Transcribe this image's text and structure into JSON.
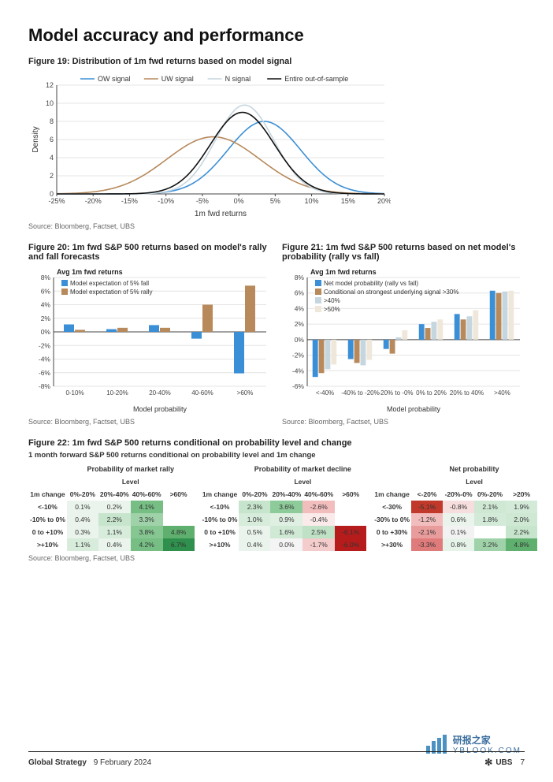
{
  "page_title": "Model accuracy and performance",
  "fig19": {
    "title": "Figure 19: Distribution of 1m fwd returns based on model signal",
    "source": "Source: Bloomberg, Factset, UBS",
    "xlabel": "1m fwd returns",
    "ylabel": "Density",
    "xlim": [
      -25,
      20
    ],
    "ylim": [
      0,
      12
    ],
    "xticks": [
      -25,
      -20,
      -15,
      -10,
      -5,
      0,
      5,
      10,
      15,
      20
    ],
    "yticks": [
      0,
      2,
      4,
      6,
      8,
      10,
      12
    ],
    "tick_fontsize": 9,
    "label_fontsize": 10,
    "grid_color": "#e4e4e4",
    "axis_color": "#444",
    "legend_fontsize": 9,
    "series": [
      {
        "label": "OW signal",
        "color": "#3b8fd6",
        "mu": 3.5,
        "sigma": 5.0,
        "amp": 8.0
      },
      {
        "label": "UW signal",
        "color": "#b7895b",
        "mu": -3.5,
        "sigma": 6.4,
        "amp": 6.3
      },
      {
        "label": "N signal",
        "color": "#c6d6df",
        "mu": 0.8,
        "sigma": 4.0,
        "amp": 9.8
      },
      {
        "label": "Entire out-of-sample",
        "color": "#111111",
        "mu": 0.5,
        "sigma": 4.4,
        "amp": 9.0
      }
    ]
  },
  "fig20": {
    "title": "Figure 20: 1m fwd S&P 500 returns based on model's rally and fall forecasts",
    "source": "Source: Bloomberg, Factset, UBS",
    "ylabel_top": "Avg 1m fwd returns",
    "xlabel": "Model probability",
    "ylim": [
      -8,
      8
    ],
    "yticks": [
      -8,
      -6,
      -4,
      -2,
      0,
      2,
      4,
      6,
      8
    ],
    "categories": [
      "0-10%",
      "10-20%",
      "20-40%",
      "40-60%",
      ">60%"
    ],
    "grid_color": "#e4e4e4",
    "axis_color": "#444",
    "series": [
      {
        "label": "Model expectation of 5% fall",
        "color": "#3b8fd6",
        "values": [
          1.1,
          0.4,
          1.0,
          -1.0,
          -6.1
        ]
      },
      {
        "label": "Model expectation of 5% rally",
        "color": "#b7895b",
        "values": [
          0.3,
          0.6,
          0.6,
          4.0,
          6.8
        ]
      }
    ]
  },
  "fig21": {
    "title": "Figure 21: 1m fwd S&P 500 returns based on net model's probability (rally vs fall)",
    "source": "Source: Bloomberg, Factset, UBS",
    "ylabel_top": "Avg 1m fwd returns",
    "xlabel": "Model probability",
    "ylim": [
      -6,
      8
    ],
    "yticks": [
      -6,
      -4,
      -2,
      0,
      2,
      4,
      6,
      8
    ],
    "categories": [
      "<-40%",
      "-40% to -20%",
      "-20% to -0%",
      "0% to 20%",
      "20% to 40%",
      ">40%"
    ],
    "grid_color": "#e4e4e4",
    "axis_color": "#444",
    "series": [
      {
        "label": "Net model probability (rally vs fall)",
        "color": "#3b8fd6",
        "values": [
          -4.8,
          -2.5,
          -1.2,
          2.0,
          3.3,
          6.3
        ]
      },
      {
        "label": "Conditional on strongest underlying signal >30%",
        "color": "#b7895b",
        "values": [
          -4.3,
          -3.0,
          -1.8,
          1.5,
          2.6,
          6.0
        ]
      },
      {
        "label": ">40%",
        "color": "#c6d6df",
        "values": [
          -3.8,
          -3.3,
          0.3,
          2.3,
          3.0,
          6.2
        ]
      },
      {
        "label": ">50%",
        "color": "#efe7da",
        "values": [
          -3.2,
          -2.6,
          1.2,
          2.6,
          3.8,
          6.3
        ]
      }
    ]
  },
  "fig22": {
    "title": "Figure 22: 1m fwd S&P 500 returns conditional on probability level and change",
    "subtitle": "1 month forward S&P 500 returns conditional on probability level and 1m change",
    "source": "Source: Bloomberg, Factset, UBS",
    "groupA": {
      "name": "Probability of market rally",
      "level_label": "Level",
      "change_label": "1m change",
      "cols": [
        "0%-20%",
        "20%-40%",
        "40%-60%",
        ">60%"
      ],
      "rows": [
        "<-10%",
        "-10% to 0%",
        "0 to +10%",
        ">+10%"
      ],
      "values": [
        [
          "0.1%",
          "0.2%",
          "4.1%",
          ""
        ],
        [
          "0.4%",
          "2.2%",
          "3.3%",
          ""
        ],
        [
          "0.3%",
          "1.1%",
          "3.8%",
          "4.8%"
        ],
        [
          "1.1%",
          "0.4%",
          "4.2%",
          "6.7%"
        ]
      ],
      "colors": [
        [
          "#eaf4ec",
          "#eaf4ec",
          "#76be84",
          ""
        ],
        [
          "#eaf4ec",
          "#c7e5cc",
          "#9fd2a9",
          ""
        ],
        [
          "#eaf4ec",
          "#d7ecdb",
          "#85c691",
          "#5fb06e"
        ],
        [
          "#d7ecdb",
          "#eaf4ec",
          "#76be84",
          "#2f8f4d"
        ]
      ]
    },
    "groupB": {
      "name": "Probability of market decline",
      "level_label": "Level",
      "change_label": "1m change",
      "cols": [
        "0%-20%",
        "20%-40%",
        "40%-60%",
        ">60%"
      ],
      "rows": [
        "<-10%",
        "-10% to 0%",
        "0 to +10%",
        ">+10%"
      ],
      "values": [
        [
          "2.3%",
          "3.6%",
          "-2.6%",
          ""
        ],
        [
          "1.0%",
          "0.9%",
          "-0.4%",
          ""
        ],
        [
          "0.5%",
          "1.6%",
          "2.5%",
          "-6.1%"
        ],
        [
          "0.4%",
          "0.0%",
          "-1.7%",
          "-6.0%"
        ]
      ],
      "colors": [
        [
          "#c7e5cc",
          "#8ecb9a",
          "#f2bdbd",
          ""
        ],
        [
          "#d7ecdb",
          "#dff0e3",
          "#faeaea",
          ""
        ],
        [
          "#eaf4ec",
          "#d0e9d5",
          "#bfe1c6",
          "#b71c1c"
        ],
        [
          "#eaf4ec",
          "#f4f4f4",
          "#f4cccc",
          "#b71c1c"
        ]
      ]
    },
    "groupC": {
      "name": "Net probability",
      "level_label": "Level",
      "change_label": "1m change",
      "cols": [
        "<-20%",
        "-20%-0%",
        "0%-20%",
        ">20%"
      ],
      "rows": [
        "<-30%",
        "-30% to 0%",
        "0 to +30%",
        ">+30%"
      ],
      "values": [
        [
          "-5.1%",
          "-0.8%",
          "2.1%",
          "1.9%"
        ],
        [
          "-1.2%",
          "0.6%",
          "1.8%",
          "2.0%"
        ],
        [
          "-2.1%",
          "0.1%",
          "",
          "2.2%"
        ],
        [
          "-3.3%",
          "0.8%",
          "3.2%",
          "4.8%"
        ]
      ],
      "colors": [
        [
          "#c0392b",
          "#f7dede",
          "#cfe8d4",
          "#d3ead8"
        ],
        [
          "#f2bdbd",
          "#eaf4ec",
          "#d3ead8",
          "#cfe8d4"
        ],
        [
          "#e99c9c",
          "#f2f2f2",
          "",
          "#c7e5cc"
        ],
        [
          "#e07b7b",
          "#e6f3e9",
          "#9fd2a9",
          "#5fb06e"
        ]
      ]
    }
  },
  "footer": {
    "left_bold": "Global Strategy",
    "left_date": "9 February 2024",
    "right_brand": "UBS",
    "right_page": "7"
  },
  "watermark": {
    "title": "研报之家",
    "sub": "YBLOOK.COM"
  }
}
